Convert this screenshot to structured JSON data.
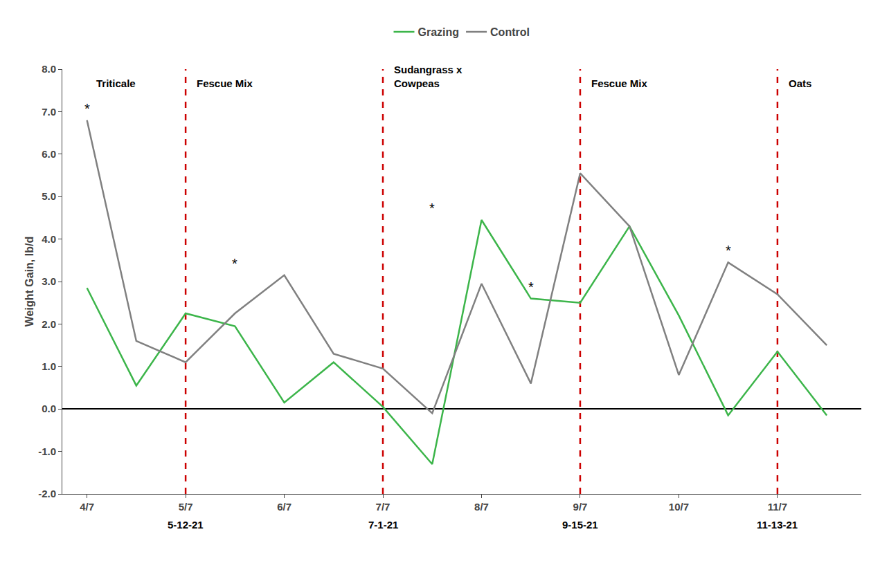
{
  "chart_data": {
    "type": "line",
    "x": [
      0,
      0.5,
      1,
      1.5,
      2,
      2.5,
      3,
      3.5,
      4,
      4.5,
      5,
      5.5,
      6,
      6.5,
      7,
      7.5
    ],
    "series": [
      {
        "name": "Grazing",
        "color": "#3cb54a",
        "values": [
          2.85,
          0.55,
          2.25,
          1.95,
          0.15,
          1.1,
          0.05,
          -1.3,
          4.45,
          2.6,
          2.5,
          4.3,
          2.2,
          -0.15,
          1.35,
          -0.15
        ]
      },
      {
        "name": "Control",
        "color": "#808080",
        "values": [
          6.8,
          1.6,
          1.1,
          2.25,
          3.15,
          1.3,
          0.95,
          -0.1,
          2.95,
          0.6,
          5.55,
          4.3,
          0.8,
          3.45,
          2.7,
          1.5
        ]
      }
    ],
    "xlim": [
      -0.25,
      7.85
    ],
    "xticks": [
      {
        "value": 0,
        "label": "4/7"
      },
      {
        "value": 1,
        "label": "5/7"
      },
      {
        "value": 2,
        "label": "6/7"
      },
      {
        "value": 3,
        "label": "7/7"
      },
      {
        "value": 4,
        "label": "8/7"
      },
      {
        "value": 5,
        "label": "9/7"
      },
      {
        "value": 6,
        "label": "10/7"
      },
      {
        "value": 7,
        "label": "11/7"
      }
    ],
    "ylim": [
      -2.0,
      8.0
    ],
    "yticks": [
      {
        "value": -2.0,
        "label": "-2.0"
      },
      {
        "value": -1.0,
        "label": "-1.0"
      },
      {
        "value": 0.0,
        "label": "0.0"
      },
      {
        "value": 1.0,
        "label": "1.0"
      },
      {
        "value": 2.0,
        "label": "2.0"
      },
      {
        "value": 3.0,
        "label": "3.0"
      },
      {
        "value": 4.0,
        "label": "4.0"
      },
      {
        "value": 5.0,
        "label": "5.0"
      },
      {
        "value": 6.0,
        "label": "6.0"
      },
      {
        "value": 7.0,
        "label": "7.0"
      },
      {
        "value": 8.0,
        "label": "8.0"
      }
    ],
    "ylabel": "Weight Gain, lb/d",
    "grid": false,
    "legend": "top",
    "significance": [
      {
        "x": 0.0,
        "y": 6.8,
        "label": "*"
      },
      {
        "x": 1.5,
        "y": 3.15,
        "label": "*"
      },
      {
        "x": 3.5,
        "y": 4.45,
        "label": "*"
      },
      {
        "x": 4.5,
        "y": 2.6,
        "label": "*"
      },
      {
        "x": 6.5,
        "y": 3.45,
        "label": "*"
      }
    ],
    "annotations": [
      {
        "text": "Triticale",
        "x": 0.08,
        "y": 7.5
      },
      {
        "text": "Fescue Mix",
        "x": 1.1,
        "y": 7.5
      },
      {
        "text": "Sudangrass x\nCowpeas",
        "x": 3.1,
        "y": 7.5
      },
      {
        "text": "Fescue Mix",
        "x": 5.1,
        "y": 7.5
      },
      {
        "text": "Oats",
        "x": 7.1,
        "y": 7.5
      }
    ],
    "vertical_lines": {
      "color": "#cc0000",
      "line_style": "dashed",
      "lines": [
        {
          "x": 1.0,
          "label": "5-12-21"
        },
        {
          "x": 3.0,
          "label": "7-1-21"
        },
        {
          "x": 5.0,
          "label": "9-15-21"
        },
        {
          "x": 7.0,
          "label": "11-13-21"
        }
      ]
    }
  }
}
